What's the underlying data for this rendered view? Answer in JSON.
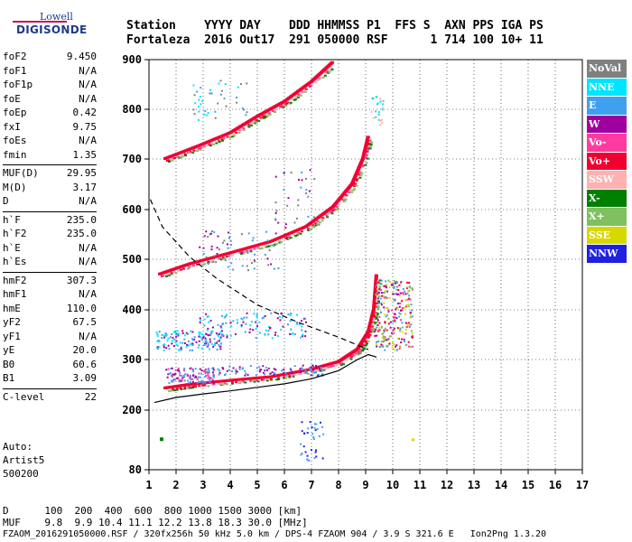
{
  "logo": {
    "line1": "Lowell",
    "line2": "DIGISONDE"
  },
  "header": {
    "line1": "Station    YYYY DAY    DDD HHMMSS P1  FFS S  AXN PPS IGA PS",
    "line2": "Fortaleza  2016 Out17  291 050000 RSF      1 714 100 10+ 11"
  },
  "params": [
    {
      "name": "foF2",
      "value": "9.450"
    },
    {
      "name": "foF1",
      "value": "N/A"
    },
    {
      "name": "foF1p",
      "value": "N/A"
    },
    {
      "name": "foE",
      "value": "N/A"
    },
    {
      "name": "foEp",
      "value": "0.42"
    },
    {
      "name": "fxI",
      "value": "9.75"
    },
    {
      "name": "foEs",
      "value": "N/A"
    },
    {
      "name": "fmin",
      "value": "1.35"
    },
    {
      "name": "MUF(D)",
      "value": "29.95"
    },
    {
      "name": "M(D)",
      "value": "3.17"
    },
    {
      "name": "D",
      "value": "N/A"
    },
    {
      "name": "h`F",
      "value": "235.0"
    },
    {
      "name": "h`F2",
      "value": "235.0"
    },
    {
      "name": "h`E",
      "value": "N/A"
    },
    {
      "name": "h`Es",
      "value": "N/A"
    },
    {
      "name": "hmF2",
      "value": "307.3"
    },
    {
      "name": "hmF1",
      "value": "N/A"
    },
    {
      "name": "hmE",
      "value": "110.0"
    },
    {
      "name": "yF2",
      "value": "67.5"
    },
    {
      "name": "yF1",
      "value": "N/A"
    },
    {
      "name": "yE",
      "value": "20.0"
    },
    {
      "name": "B0",
      "value": "60.6"
    },
    {
      "name": "B1",
      "value": "3.09"
    },
    {
      "name": "C-level",
      "value": "22"
    }
  ],
  "auto": {
    "line1": "Auto:",
    "line2": "Artist5",
    "line3": "500200"
  },
  "legend": [
    {
      "label": "NoVal",
      "color": "#808080"
    },
    {
      "label": "NNE",
      "color": "#00e5ff"
    },
    {
      "label": "E",
      "color": "#40a0f0"
    },
    {
      "label": "W",
      "color": "#a000a0"
    },
    {
      "label": "Vo-",
      "color": "#ff3aa0"
    },
    {
      "label": "Vo+",
      "color": "#f00030"
    },
    {
      "label": "SSW",
      "color": "#ffb0b0"
    },
    {
      "label": "X-",
      "color": "#008000"
    },
    {
      "label": "X+",
      "color": "#80c060"
    },
    {
      "label": "SSE",
      "color": "#d8d800"
    },
    {
      "label": "NNW",
      "color": "#2020e0"
    }
  ],
  "footer": {
    "line1": "D      100  200  400  600  800 1000 1500 3000 [km]",
    "line2": "MUF    9.8  9.9 10.4 11.1 12.2 13.8 18.3 30.0 [MHz]",
    "line3": "FZAOM_2016291050000.RSF / 320fx256h 50 kHz 5.0 km / DPS-4 FZAOM 904 / 3.9 S 321.6 E   Ion2Png 1.3.20"
  },
  "chart_data": {
    "type": "scatter",
    "x_ticks": [
      "1",
      "2",
      "3",
      "4",
      "5",
      "6",
      "7",
      "8",
      "9",
      "10",
      "11",
      "12",
      "13",
      "14",
      "15",
      "16",
      "17"
    ],
    "y_ticks": [
      "80",
      "200",
      "300",
      "400",
      "500",
      "600",
      "700",
      "800",
      "900"
    ],
    "xlim": [
      1,
      17
    ],
    "ylim": [
      80,
      900
    ],
    "grid": true,
    "legend_position": "right",
    "traces": [
      {
        "color": "#f00030",
        "points": [
          [
            1.6,
            243
          ],
          [
            2.5,
            250
          ],
          [
            4,
            258
          ],
          [
            5.5,
            265
          ],
          [
            7,
            280
          ],
          [
            8,
            295
          ],
          [
            8.7,
            320
          ],
          [
            9.1,
            355
          ],
          [
            9.3,
            400
          ],
          [
            9.4,
            470
          ]
        ]
      },
      {
        "color": "#f00030",
        "points": [
          [
            1.4,
            470
          ],
          [
            2.5,
            490
          ],
          [
            4,
            512
          ],
          [
            5.5,
            535
          ],
          [
            6.8,
            565
          ],
          [
            7.8,
            605
          ],
          [
            8.5,
            650
          ],
          [
            8.9,
            700
          ],
          [
            9.1,
            745
          ]
        ]
      },
      {
        "color": "#f00030",
        "points": [
          [
            1.6,
            700
          ],
          [
            2.8,
            725
          ],
          [
            4,
            752
          ],
          [
            5,
            785
          ],
          [
            6,
            815
          ],
          [
            7,
            855
          ],
          [
            7.8,
            895
          ]
        ]
      }
    ],
    "profile": {
      "color": "#000000",
      "points": [
        [
          1.2,
          215
        ],
        [
          2,
          225
        ],
        [
          3,
          232
        ],
        [
          4,
          238
        ],
        [
          5,
          245
        ],
        [
          6,
          252
        ],
        [
          7,
          262
        ],
        [
          8,
          278
        ],
        [
          8.7,
          300
        ],
        [
          9.1,
          310
        ],
        [
          9.4,
          305
        ]
      ]
    },
    "dashed_curve": {
      "color": "#000000",
      "points": [
        [
          1.05,
          620
        ],
        [
          1.5,
          565
        ],
        [
          2.5,
          505
        ],
        [
          3.5,
          462
        ],
        [
          5,
          410
        ],
        [
          6.5,
          375
        ],
        [
          8,
          345
        ],
        [
          9.1,
          320
        ]
      ]
    }
  }
}
